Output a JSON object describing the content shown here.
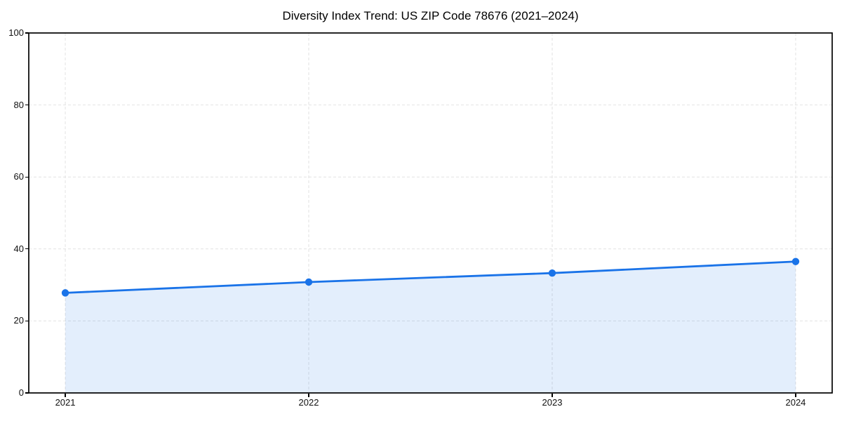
{
  "chart_data": {
    "type": "line",
    "title": "Diversity Index Trend: US ZIP Code 78676 (2021–2024)",
    "x": [
      2021,
      2022,
      2023,
      2024
    ],
    "series": [
      {
        "name": "Diversity Index",
        "values": [
          27.8,
          30.8,
          33.3,
          36.5
        ],
        "color": "#1a73e8",
        "marker": "circle",
        "area_fill": true,
        "fill_opacity": 0.12
      }
    ],
    "xlabel": "",
    "ylabel": "",
    "xticks": [
      2021,
      2022,
      2023,
      2024
    ],
    "yticks": [
      0,
      20,
      40,
      60,
      80,
      100
    ],
    "xlim": [
      2020.85,
      2024.15
    ],
    "ylim": [
      0,
      100
    ],
    "grid": {
      "visible": true,
      "style": "dashed",
      "color": "#e2e2e2"
    },
    "legend_position": "none",
    "axes_color": "#000000",
    "background_color": "#ffffff"
  }
}
